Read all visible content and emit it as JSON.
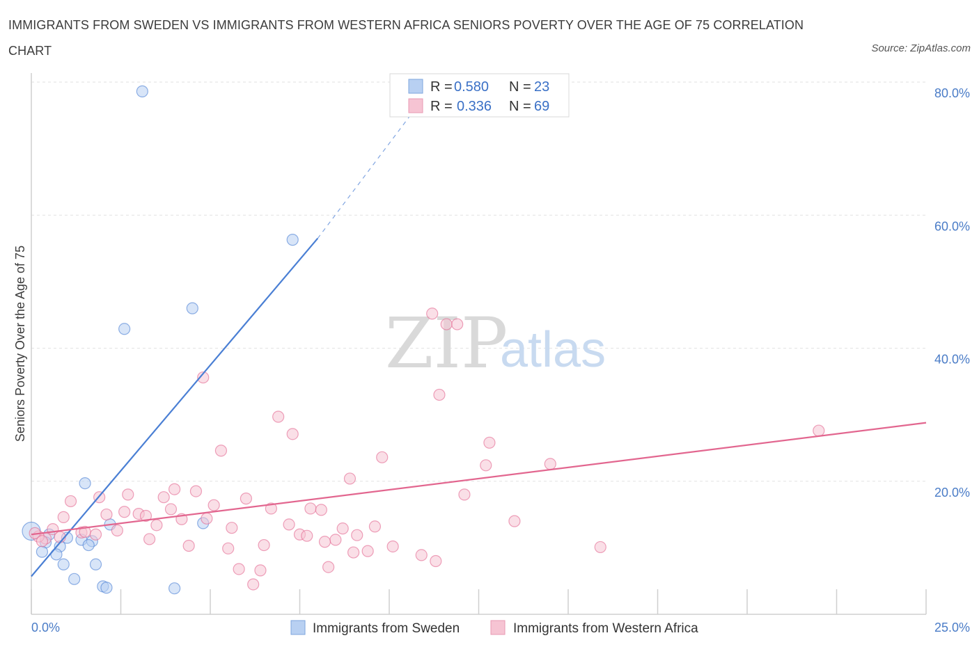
{
  "title": "IMMIGRANTS FROM SWEDEN VS IMMIGRANTS FROM WESTERN AFRICA SENIORS POVERTY OVER THE AGE OF 75 CORRELATION CHART",
  "source": "Source: ZipAtlas.com",
  "watermark": {
    "zip": "ZIP",
    "atlas": "atlas"
  },
  "colors": {
    "sweden": "#4a7fd4",
    "sweden_fill": "#b8d0f2",
    "western_africa": "#e2668f",
    "western_africa_fill": "#f6c4d3",
    "tick_label": "#4a7cc7",
    "grid": "#e2e2e2"
  },
  "legend": {
    "items": [
      {
        "r_label": "R =",
        "r_value": "0.580",
        "n_label": "N =",
        "n_value": "23"
      },
      {
        "r_label": "R =",
        "r_value": "0.336",
        "n_label": "N =",
        "n_value": "69"
      }
    ]
  },
  "bottom_legend": [
    "Immigrants from Sweden",
    "Immigrants from Western Africa"
  ],
  "chart_data": {
    "type": "scatter",
    "title": "IMMIGRANTS FROM SWEDEN VS IMMIGRANTS FROM WESTERN AFRICA SENIORS POVERTY OVER THE AGE OF 75 CORRELATION CHART",
    "xlabel": "",
    "ylabel": "Seniors Poverty Over the Age of 75",
    "xlim": [
      0,
      25
    ],
    "ylim": [
      0,
      80
    ],
    "x_tick_labels": [
      "0.0%",
      "25.0%"
    ],
    "y_ticks": [
      20,
      40,
      60,
      80
    ],
    "y_tick_labels": [
      "20.0%",
      "40.0%",
      "60.0%",
      "80.0%"
    ],
    "grid": true,
    "legend_position": "top-center",
    "series": [
      {
        "name": "Immigrants from Sweden",
        "R": 0.58,
        "N": 23,
        "trend": {
          "x": [
            0,
            8.0
          ],
          "y": [
            5.7,
            56.5
          ],
          "dashed_to": [
            10.8,
            76.5
          ]
        },
        "points": [
          [
            3.1,
            78.6
          ],
          [
            7.3,
            56.3
          ],
          [
            4.5,
            46.0
          ],
          [
            2.6,
            42.9
          ],
          [
            1.5,
            19.7
          ],
          [
            4.8,
            13.7
          ],
          [
            2.2,
            13.5
          ],
          [
            0.5,
            12.0
          ],
          [
            1.0,
            11.5
          ],
          [
            1.4,
            11.2
          ],
          [
            1.7,
            11.0
          ],
          [
            0.4,
            10.8
          ],
          [
            0.8,
            10.2
          ],
          [
            1.6,
            10.4
          ],
          [
            0.3,
            9.4
          ],
          [
            0.7,
            9.0
          ],
          [
            0.9,
            7.5
          ],
          [
            1.8,
            7.5
          ],
          [
            1.2,
            5.3
          ],
          [
            2.0,
            4.2
          ],
          [
            2.1,
            4.0
          ],
          [
            4.0,
            3.9
          ],
          [
            0.0,
            12.5
          ]
        ]
      },
      {
        "name": "Immigrants from Western Africa",
        "R": 0.336,
        "N": 69,
        "trend": {
          "x": [
            0,
            25
          ],
          "y": [
            12.0,
            28.8
          ]
        },
        "points": [
          [
            11.2,
            45.2
          ],
          [
            11.6,
            43.6
          ],
          [
            11.9,
            43.6
          ],
          [
            4.8,
            35.6
          ],
          [
            11.4,
            33.0
          ],
          [
            6.9,
            29.7
          ],
          [
            7.3,
            27.1
          ],
          [
            22.0,
            27.6
          ],
          [
            5.3,
            24.6
          ],
          [
            12.8,
            25.8
          ],
          [
            9.8,
            23.6
          ],
          [
            8.9,
            20.4
          ],
          [
            12.7,
            22.4
          ],
          [
            14.5,
            22.6
          ],
          [
            4.6,
            18.5
          ],
          [
            4.0,
            18.8
          ],
          [
            2.7,
            18.0
          ],
          [
            3.7,
            17.6
          ],
          [
            1.9,
            17.6
          ],
          [
            6.0,
            17.4
          ],
          [
            1.1,
            17.0
          ],
          [
            5.1,
            16.4
          ],
          [
            3.9,
            15.8
          ],
          [
            6.7,
            15.9
          ],
          [
            7.8,
            15.9
          ],
          [
            8.1,
            15.7
          ],
          [
            12.1,
            18.0
          ],
          [
            2.6,
            15.4
          ],
          [
            2.1,
            15.0
          ],
          [
            3.0,
            15.1
          ],
          [
            3.2,
            14.8
          ],
          [
            0.9,
            14.6
          ],
          [
            4.2,
            14.3
          ],
          [
            4.9,
            14.4
          ],
          [
            3.5,
            13.4
          ],
          [
            7.2,
            13.5
          ],
          [
            5.6,
            13.0
          ],
          [
            9.6,
            13.2
          ],
          [
            2.4,
            12.6
          ],
          [
            8.7,
            12.9
          ],
          [
            0.6,
            12.8
          ],
          [
            1.4,
            12.3
          ],
          [
            1.5,
            12.4
          ],
          [
            1.8,
            12.0
          ],
          [
            7.5,
            12.0
          ],
          [
            7.7,
            11.8
          ],
          [
            9.1,
            11.9
          ],
          [
            0.4,
            11.4
          ],
          [
            0.8,
            11.6
          ],
          [
            0.2,
            11.7
          ],
          [
            13.5,
            14.0
          ],
          [
            3.3,
            11.3
          ],
          [
            8.5,
            11.2
          ],
          [
            8.2,
            10.9
          ],
          [
            6.5,
            10.4
          ],
          [
            4.4,
            10.3
          ],
          [
            10.1,
            10.2
          ],
          [
            15.9,
            10.1
          ],
          [
            5.5,
            9.9
          ],
          [
            9.4,
            9.5
          ],
          [
            9.0,
            9.3
          ],
          [
            10.9,
            8.9
          ],
          [
            11.3,
            8.0
          ],
          [
            8.3,
            7.1
          ],
          [
            5.8,
            6.8
          ],
          [
            6.4,
            6.6
          ],
          [
            6.2,
            4.5
          ],
          [
            0.1,
            12.2
          ],
          [
            0.3,
            11.0
          ]
        ]
      }
    ]
  }
}
